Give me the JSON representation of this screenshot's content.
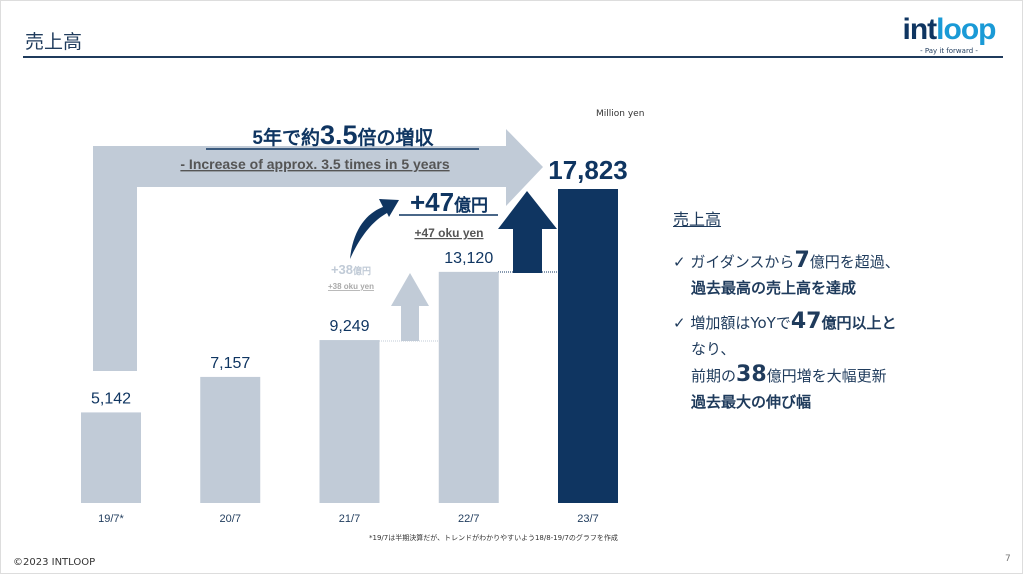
{
  "header": {
    "title": "売上高",
    "logo_text": "intloop",
    "logo_tagline": "- Pay it forward -"
  },
  "chart_data": {
    "type": "bar",
    "unit_label": "Million yen",
    "categories": [
      "19/7*",
      "20/7",
      "21/7",
      "22/7",
      "23/7"
    ],
    "values": [
      5142,
      7157,
      9249,
      13120,
      17823
    ],
    "value_labels": [
      "5,142",
      "7,157",
      "9,249",
      "13,120",
      "17,823"
    ],
    "ylim": [
      0,
      17823
    ],
    "colors": {
      "past": "#c1cbd7",
      "current": "#0f3561"
    },
    "annotations": {
      "headline_ja_pre": "5年で約",
      "headline_ja_num": "3.5",
      "headline_ja_post": "倍の増収",
      "headline_en": "- Increase of approx. 3.5 times in 5 years",
      "inc47_num": "+47",
      "inc47_unit": "億円",
      "inc47_en": "+47 oku yen",
      "inc38_num": "+38",
      "inc38_unit": "億円",
      "inc38_en": "+38 oku yen"
    },
    "footnote": "*19/7は半期決算だが、トレンドがわかりやすいよう18/8-19/7のグラフを作成"
  },
  "panel": {
    "heading": "売上高",
    "bullet1": {
      "a": "✓ ガイダンスから",
      "big": "7",
      "b": "億円を超過、",
      "c": "過去最高の売上高を達成"
    },
    "bullet2": {
      "a": "✓ 増加額はYoYで",
      "big": "47",
      "b": "億円以上と",
      "c": "なり、",
      "d": "前期の",
      "big2": "38",
      "e": "億円増を大幅更新",
      "f": "過去最大の伸び幅"
    }
  },
  "footer": {
    "copyright": "©2023 INTLOOP",
    "page": "7"
  }
}
